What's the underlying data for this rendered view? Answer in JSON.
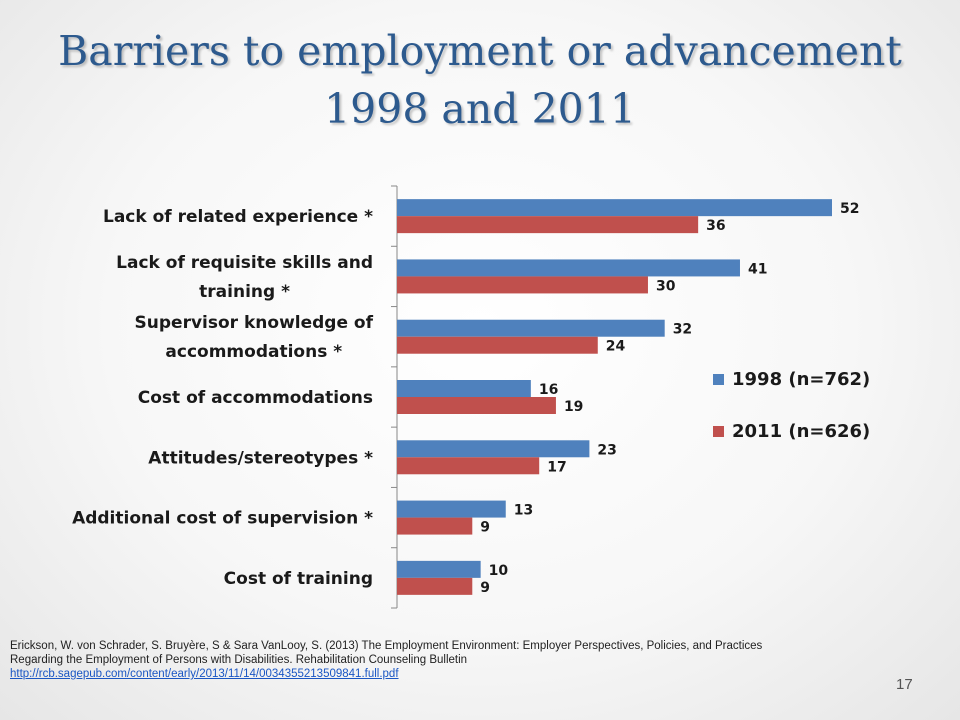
{
  "slide": {
    "title_line1": "Barriers to employment or advancement",
    "title_line2": "1998 and 2011",
    "citation_line1": "Erickson, W. von Schrader, S. Bruyère, S & Sara VanLooy, S. (2013) The Employment Environment: Employer Perspectives, Policies, and Practices",
    "citation_line2": "Regarding the Employment of Persons with Disabilities. Rehabilitation Counseling Bulletin",
    "citation_link": "http://rcb.sagepub.com/content/early/2013/11/14/0034355213509841.full.pdf",
    "page_number": "17"
  },
  "chart_data": {
    "type": "bar",
    "orientation": "horizontal",
    "categories": [
      [
        "Lack of related experience *"
      ],
      [
        "Lack of requisite skills and",
        "training *"
      ],
      [
        "Supervisor knowledge of",
        "accommodations *"
      ],
      [
        "Cost of accommodations"
      ],
      [
        "Attitudes/stereotypes *"
      ],
      [
        "Additional cost of supervision *"
      ],
      [
        "Cost of training"
      ]
    ],
    "series": [
      {
        "name": "1998 (n=762)",
        "values": [
          52,
          41,
          32,
          16,
          23,
          13,
          10
        ],
        "color": "#4f81bd"
      },
      {
        "name": "2011 (n=626)",
        "values": [
          36,
          30,
          24,
          19,
          17,
          9,
          9
        ],
        "color": "#c0504d"
      }
    ],
    "xlim": [
      0,
      55
    ],
    "grid": false,
    "legend_position": "right"
  }
}
